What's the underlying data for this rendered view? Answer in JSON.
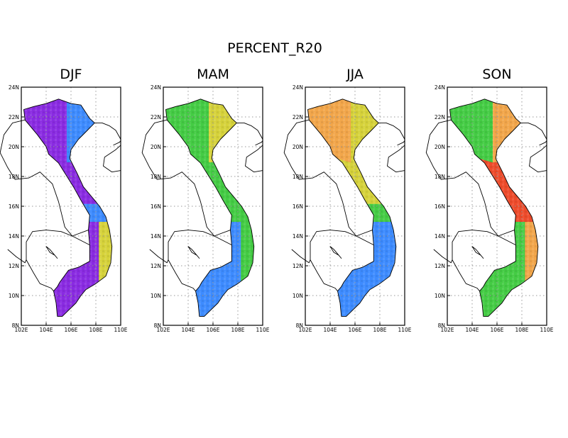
{
  "title": "PERCENT_R20",
  "chart_data": {
    "type": "heatmap",
    "title": "PERCENT_R20",
    "lon_range": [
      102,
      110
    ],
    "lat_range": [
      8,
      24
    ],
    "x_ticks": [
      "102E",
      "104E",
      "106E",
      "108E",
      "110E"
    ],
    "y_ticks": [
      "8N",
      "10N",
      "12N",
      "14N",
      "16N",
      "18N",
      "20N",
      "22N",
      "24N"
    ],
    "grid": true,
    "colors": {
      "purple": "#8a2be2",
      "blue": "#3d8bff",
      "cyan": "#33c6c6",
      "green": "#44cc44",
      "yellow": "#d6d23a",
      "orange": "#f2a64a",
      "red": "#ee4b2b"
    },
    "panels": [
      {
        "name": "DJF",
        "regions": {
          "northwest": "purple",
          "northeast": "blue",
          "north_coast": "purple",
          "central_coast": "blue",
          "south_central_coast": "yellow",
          "central_highlands": "purple",
          "south": "purple"
        }
      },
      {
        "name": "MAM",
        "regions": {
          "northwest": "green",
          "northeast": "yellow",
          "north_coast": "green",
          "central_coast": "green",
          "south_central_coast": "green",
          "central_highlands": "blue",
          "south": "blue"
        }
      },
      {
        "name": "JJA",
        "regions": {
          "northwest": "orange",
          "northeast": "yellow",
          "north_coast": "yellow",
          "central_coast": "green",
          "south_central_coast": "blue",
          "central_highlands": "blue",
          "south": "blue"
        }
      },
      {
        "name": "SON",
        "regions": {
          "northwest": "green",
          "northeast": "orange",
          "north_coast": "red",
          "central_coast": "red",
          "south_central_coast": "orange",
          "central_highlands": "green",
          "south": "green"
        }
      }
    ]
  }
}
